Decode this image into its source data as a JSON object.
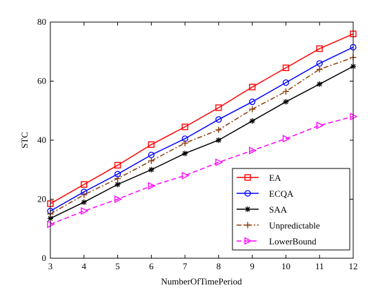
{
  "chart_data": {
    "type": "line",
    "title": "",
    "xlabel": "NumberOfTimePeriod",
    "ylabel": "STC",
    "xlim": [
      3,
      12
    ],
    "ylim": [
      0,
      80
    ],
    "x_ticks": [
      "3",
      "4",
      "5",
      "6",
      "7",
      "8",
      "9",
      "10",
      "11",
      "12"
    ],
    "y_ticks": [
      "0",
      "20",
      "40",
      "60",
      "80"
    ],
    "grid": false,
    "legend_position": "bottom-right",
    "x": [
      3,
      4,
      5,
      6,
      7,
      8,
      9,
      10,
      11,
      12
    ],
    "series": [
      {
        "name": "EA",
        "color": "#ff0000",
        "marker": "square",
        "line_style": "solid",
        "values": [
          18.5,
          25,
          31.5,
          38.5,
          44.5,
          51,
          58,
          64.5,
          71,
          76
        ]
      },
      {
        "name": "ECQA",
        "color": "#0000ff",
        "marker": "circle",
        "line_style": "solid",
        "values": [
          16,
          22.5,
          28.5,
          35,
          40.5,
          47,
          53,
          59.5,
          66,
          71.5
        ]
      },
      {
        "name": "SAA",
        "color": "#000000",
        "marker": "star",
        "line_style": "solid",
        "values": [
          13.5,
          19,
          25,
          30,
          35.5,
          40,
          46.5,
          53,
          59,
          65
        ]
      },
      {
        "name": "Unpredictable",
        "color": "#8b3a0a",
        "marker": "plus",
        "line_style": "dashdot",
        "values": [
          15,
          21.5,
          27,
          33,
          39,
          43.5,
          50.5,
          56.5,
          64,
          68
        ]
      },
      {
        "name": "LowerBound",
        "color": "#ff00ff",
        "marker": "triangle-right",
        "line_style": "dashed",
        "values": [
          11.5,
          16,
          20,
          24.5,
          28,
          32.5,
          36.5,
          40.5,
          45,
          48
        ]
      }
    ]
  }
}
